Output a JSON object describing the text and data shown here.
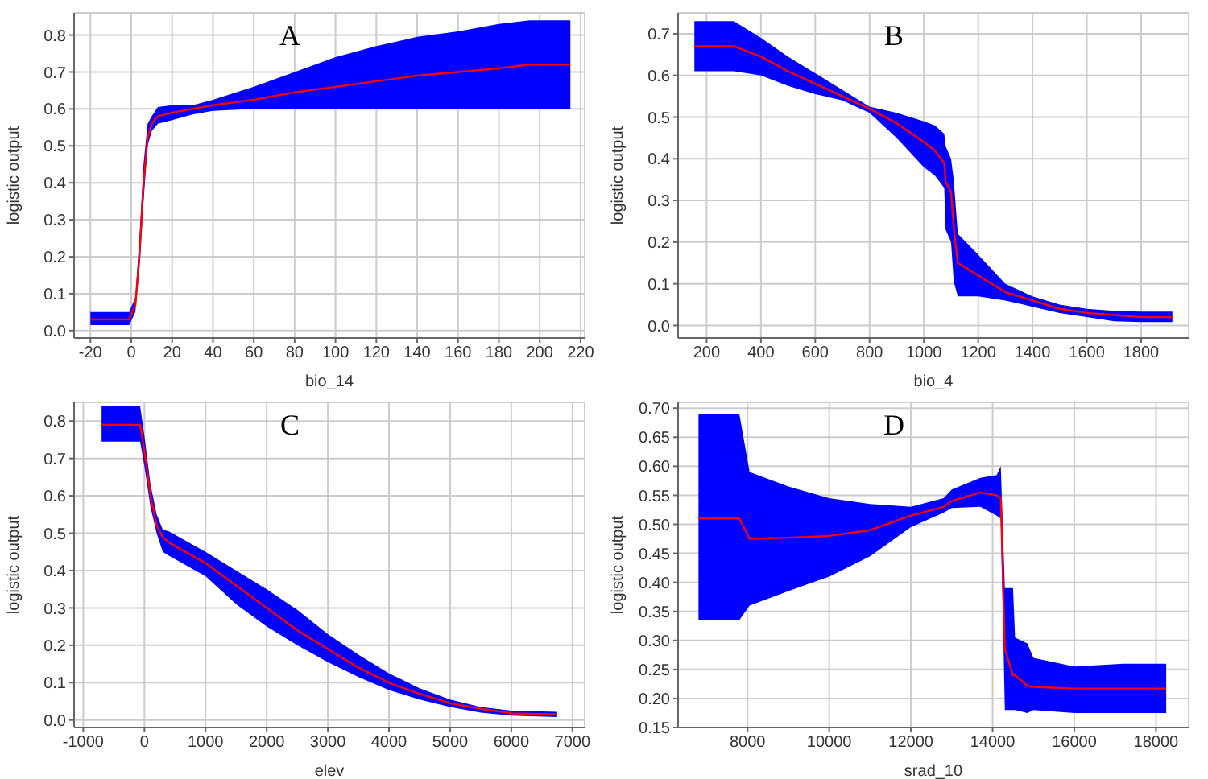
{
  "chart_data": [
    {
      "type": "line",
      "title": "A",
      "xlabel": "bio_14",
      "ylabel": "logistic output",
      "grid": true,
      "marker": "none",
      "line_style": "solid",
      "xlim": [
        -28,
        222
      ],
      "xticks": [
        -20,
        0,
        20,
        40,
        60,
        80,
        100,
        120,
        140,
        160,
        180,
        200,
        220
      ],
      "ylim": [
        -0.02,
        0.86
      ],
      "yticks": [
        {
          "value": 0,
          "label": "0.0"
        },
        {
          "value": 0.1,
          "label": "0.1"
        },
        {
          "value": 0.2,
          "label": "0.2"
        },
        {
          "value": 0.3,
          "label": "0.3"
        },
        {
          "value": 0.4,
          "label": "0.4"
        },
        {
          "value": 0.5,
          "label": "0.5"
        },
        {
          "value": 0.6,
          "label": "0.6"
        },
        {
          "value": 0.7,
          "label": "0.7"
        },
        {
          "value": 0.8,
          "label": "0.8"
        }
      ],
      "series": [
        {
          "color": "#ff0000",
          "x": [
            -20,
            -1,
            2,
            4,
            6,
            8,
            10,
            13,
            20,
            30,
            40,
            60,
            80,
            100,
            120,
            140,
            160,
            180,
            195,
            215
          ],
          "values": [
            0.03,
            0.03,
            0.07,
            0.2,
            0.4,
            0.52,
            0.56,
            0.58,
            0.59,
            0.6,
            0.61,
            0.625,
            0.645,
            0.66,
            0.675,
            0.69,
            0.7,
            0.71,
            0.72,
            0.72
          ],
          "lower": [
            0.015,
            0.015,
            0.05,
            0.17,
            0.35,
            0.5,
            0.54,
            0.56,
            0.57,
            0.585,
            0.595,
            0.6,
            0.6,
            0.6,
            0.6,
            0.6,
            0.6,
            0.6,
            0.6,
            0.6
          ],
          "upper": [
            0.05,
            0.05,
            0.09,
            0.25,
            0.45,
            0.56,
            0.58,
            0.605,
            0.61,
            0.61,
            0.625,
            0.66,
            0.7,
            0.74,
            0.77,
            0.795,
            0.81,
            0.83,
            0.84,
            0.84
          ]
        }
      ]
    },
    {
      "type": "line",
      "title": "B",
      "xlabel": "bio_4",
      "ylabel": "logistic output",
      "grid": true,
      "marker": "none",
      "line_style": "solid",
      "xlim": [
        95,
        1975
      ],
      "xticks": [
        200,
        400,
        600,
        800,
        1000,
        1200,
        1400,
        1600,
        1800
      ],
      "ylim": [
        -0.03,
        0.75
      ],
      "yticks": [
        {
          "value": 0,
          "label": "0.0"
        },
        {
          "value": 0.1,
          "label": "0.1"
        },
        {
          "value": 0.2,
          "label": "0.2"
        },
        {
          "value": 0.3,
          "label": "0.3"
        },
        {
          "value": 0.4,
          "label": "0.4"
        },
        {
          "value": 0.5,
          "label": "0.5"
        },
        {
          "value": 0.6,
          "label": "0.6"
        },
        {
          "value": 0.7,
          "label": "0.7"
        }
      ],
      "series": [
        {
          "color": "#ff0000",
          "x": [
            155,
            300,
            400,
            500,
            600,
            700,
            800,
            900,
            1000,
            1040,
            1075,
            1080,
            1100,
            1110,
            1125,
            1200,
            1300,
            1400,
            1500,
            1600,
            1700,
            1800,
            1915
          ],
          "values": [
            0.67,
            0.67,
            0.645,
            0.61,
            0.58,
            0.55,
            0.52,
            0.485,
            0.44,
            0.42,
            0.39,
            0.345,
            0.32,
            0.235,
            0.15,
            0.12,
            0.08,
            0.06,
            0.04,
            0.03,
            0.025,
            0.02,
            0.02
          ],
          "lower": [
            0.61,
            0.61,
            0.6,
            0.575,
            0.555,
            0.54,
            0.51,
            0.45,
            0.38,
            0.36,
            0.33,
            0.23,
            0.2,
            0.105,
            0.07,
            0.07,
            0.06,
            0.045,
            0.03,
            0.02,
            0.01,
            0.008,
            0.008
          ],
          "upper": [
            0.73,
            0.73,
            0.69,
            0.645,
            0.605,
            0.565,
            0.525,
            0.51,
            0.49,
            0.48,
            0.46,
            0.43,
            0.4,
            0.35,
            0.22,
            0.17,
            0.1,
            0.07,
            0.05,
            0.04,
            0.035,
            0.033,
            0.033
          ]
        }
      ]
    },
    {
      "type": "line",
      "title": "C",
      "xlabel": "elev",
      "ylabel": "logistic output",
      "grid": true,
      "marker": "none",
      "line_style": "solid",
      "xlim": [
        -1150,
        7200
      ],
      "xticks": [
        -1000,
        0,
        1000,
        2000,
        3000,
        4000,
        5000,
        6000,
        7000
      ],
      "ylim": [
        -0.02,
        0.85
      ],
      "yticks": [
        {
          "value": 0,
          "label": "0.0"
        },
        {
          "value": 0.1,
          "label": "0.1"
        },
        {
          "value": 0.2,
          "label": "0.2"
        },
        {
          "value": 0.3,
          "label": "0.3"
        },
        {
          "value": 0.4,
          "label": "0.4"
        },
        {
          "value": 0.5,
          "label": "0.5"
        },
        {
          "value": 0.6,
          "label": "0.6"
        },
        {
          "value": 0.7,
          "label": "0.7"
        },
        {
          "value": 0.8,
          "label": "0.8"
        }
      ],
      "series": [
        {
          "color": "#ff0000",
          "x": [
            -700,
            -70,
            0,
            100,
            200,
            300,
            400,
            1000,
            1500,
            2000,
            2500,
            3000,
            3500,
            4000,
            4500,
            5000,
            5500,
            6000,
            6750
          ],
          "values": [
            0.79,
            0.79,
            0.72,
            0.6,
            0.52,
            0.49,
            0.475,
            0.42,
            0.36,
            0.3,
            0.24,
            0.19,
            0.14,
            0.1,
            0.07,
            0.045,
            0.03,
            0.018,
            0.015
          ],
          "lower": [
            0.745,
            0.745,
            0.68,
            0.57,
            0.5,
            0.45,
            0.44,
            0.385,
            0.31,
            0.25,
            0.2,
            0.155,
            0.115,
            0.08,
            0.055,
            0.035,
            0.02,
            0.012,
            0.008
          ],
          "upper": [
            0.84,
            0.84,
            0.76,
            0.63,
            0.55,
            0.51,
            0.505,
            0.45,
            0.4,
            0.35,
            0.295,
            0.23,
            0.175,
            0.125,
            0.085,
            0.055,
            0.035,
            0.025,
            0.022
          ]
        }
      ]
    },
    {
      "type": "line",
      "title": "D",
      "xlabel": "srad_10",
      "ylabel": "logistic output",
      "grid": true,
      "marker": "none",
      "line_style": "solid",
      "xlim": [
        6300,
        18800
      ],
      "xticks": [
        8000,
        10000,
        12000,
        14000,
        16000,
        18000
      ],
      "ylim": [
        0.15,
        0.71
      ],
      "yticks": [
        0.15,
        {
          "value": 0.2,
          "label": "0.20"
        },
        0.25,
        {
          "value": 0.3,
          "label": "0.30"
        },
        0.35,
        {
          "value": 0.4,
          "label": "0.40"
        },
        0.45,
        {
          "value": 0.5,
          "label": "0.50"
        },
        0.55,
        {
          "value": 0.6,
          "label": "0.60"
        },
        0.65,
        {
          "value": 0.7,
          "label": "0.70"
        }
      ],
      "series": [
        {
          "color": "#ff0000",
          "x": [
            6800,
            7800,
            8050,
            9000,
            10000,
            11000,
            12000,
            12800,
            13000,
            13700,
            14100,
            14200,
            14300,
            14500,
            14550,
            14850,
            15000,
            16000,
            17200,
            18250
          ],
          "values": [
            0.51,
            0.51,
            0.475,
            0.477,
            0.48,
            0.49,
            0.515,
            0.53,
            0.54,
            0.555,
            0.55,
            0.545,
            0.285,
            0.24,
            0.24,
            0.222,
            0.22,
            0.217,
            0.217,
            0.217
          ],
          "lower": [
            0.335,
            0.335,
            0.36,
            0.385,
            0.41,
            0.445,
            0.495,
            0.52,
            0.528,
            0.53,
            0.515,
            0.51,
            0.18,
            0.18,
            0.18,
            0.175,
            0.18,
            0.175,
            0.175,
            0.175
          ],
          "upper": [
            0.69,
            0.69,
            0.59,
            0.565,
            0.545,
            0.535,
            0.53,
            0.545,
            0.56,
            0.58,
            0.585,
            0.6,
            0.39,
            0.39,
            0.305,
            0.295,
            0.27,
            0.255,
            0.26,
            0.26
          ]
        }
      ]
    }
  ]
}
